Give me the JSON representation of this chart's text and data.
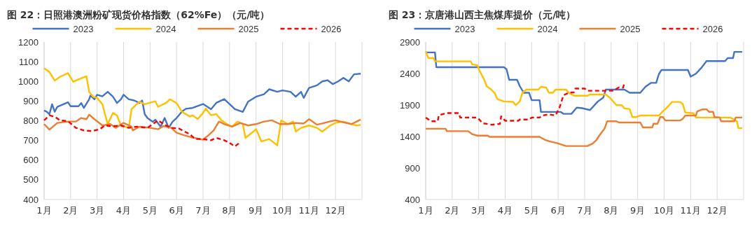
{
  "chart_data": [
    {
      "type": "line",
      "title": "图 22：日照港澳洲粉矿现货价格指数（62%Fe）（元/吨）",
      "legend": "top",
      "grid": "x",
      "xlim": [
        1,
        13
      ],
      "xticks": [
        {
          "value": 1,
          "label": "1月"
        },
        {
          "value": 2,
          "label": "2月"
        },
        {
          "value": 3,
          "label": "3月"
        },
        {
          "value": 4,
          "label": "4月"
        },
        {
          "value": 5,
          "label": "5月"
        },
        {
          "value": 6,
          "label": "6月"
        },
        {
          "value": 7,
          "label": "7月"
        },
        {
          "value": 8,
          "label": "8月"
        },
        {
          "value": 9,
          "label": "9月"
        },
        {
          "value": 10,
          "label": "10月"
        },
        {
          "value": 11,
          "label": "11月"
        },
        {
          "value": 12,
          "label": "12月"
        },
        {
          "value": 13,
          "label": null
        }
      ],
      "ylim": [
        400,
        1200
      ],
      "yticks": [
        400,
        500,
        600,
        700,
        800,
        900,
        1000,
        1100,
        1200
      ],
      "series": [
        {
          "name": "2023",
          "color": "#4472c4",
          "line_style": "solid",
          "x": [
            1.0,
            1.1,
            1.2,
            1.3,
            1.4,
            1.5,
            1.9,
            2.0,
            2.3,
            2.4,
            2.5,
            2.7,
            2.75,
            2.9,
            3.0,
            3.2,
            3.4,
            3.6,
            3.75,
            3.9,
            4.0,
            4.2,
            4.4,
            4.6,
            4.7,
            4.8,
            4.9,
            5.1,
            5.2,
            5.4,
            5.55,
            5.7,
            5.85,
            6.0,
            6.2,
            6.35,
            6.6,
            7.0,
            7.3,
            7.5,
            7.8,
            8.0,
            8.2,
            8.5,
            8.7,
            9.0,
            9.3,
            9.5,
            9.8,
            10.0,
            10.3,
            10.5,
            10.7,
            10.8,
            11.0,
            11.3,
            11.5,
            11.7,
            11.9,
            12.1,
            12.3,
            12.5,
            12.7,
            12.95
          ],
          "values": [
            852,
            846,
            833,
            884,
            846,
            871,
            894,
            874,
            874,
            890,
            865,
            909,
            928,
            909,
            932,
            924,
            947,
            922,
            890,
            909,
            932,
            909,
            903,
            890,
            903,
            833,
            814,
            795,
            805,
            770,
            814,
            764,
            795,
            814,
            846,
            861,
            865,
            885,
            859,
            891,
            910,
            885,
            859,
            845,
            897,
            922,
            935,
            960,
            947,
            954,
            947,
            922,
            947,
            916,
            967,
            980,
            1000,
            1006,
            986,
            1000,
            1018,
            1000,
            1036,
            1039
          ]
        },
        {
          "name": "2024",
          "color": "#ffc000",
          "line_style": "solid",
          "x": [
            1.0,
            1.2,
            1.4,
            1.6,
            1.9,
            2.1,
            2.3,
            2.6,
            2.7,
            2.85,
            3.0,
            3.2,
            3.4,
            3.6,
            3.75,
            3.9,
            4.2,
            4.3,
            4.6,
            4.8,
            5.2,
            5.3,
            5.6,
            5.75,
            6.0,
            6.2,
            6.5,
            6.6,
            6.8,
            7.0,
            7.1,
            7.3,
            7.5,
            7.7,
            7.9,
            8.1,
            8.3,
            8.5,
            8.6,
            8.9,
            9.0,
            9.2,
            9.5,
            9.8,
            9.95,
            10.2,
            10.4,
            10.5,
            10.7,
            11.0,
            11.3,
            11.5,
            11.8,
            12.0,
            12.3,
            12.6,
            12.8,
            12.95
          ],
          "values": [
            1067,
            1048,
            1004,
            1023,
            1042,
            998,
            1010,
            1026,
            947,
            922,
            916,
            884,
            783,
            840,
            827,
            776,
            764,
            859,
            897,
            884,
            899,
            871,
            890,
            909,
            890,
            846,
            821,
            828,
            809,
            840,
            862,
            828,
            834,
            802,
            783,
            770,
            796,
            783,
            713,
            745,
            758,
            695,
            707,
            675,
            802,
            783,
            796,
            745,
            764,
            776,
            764,
            745,
            776,
            789,
            796,
            783,
            776,
            779
          ]
        },
        {
          "name": "2025",
          "color": "#ed7d31",
          "line_style": "solid",
          "x": [
            1.0,
            1.2,
            1.5,
            1.9,
            2.2,
            2.4,
            2.6,
            2.7,
            2.9,
            3.2,
            3.5,
            3.7,
            4.0,
            4.3,
            4.35,
            4.6,
            5.0,
            5.3,
            5.5,
            5.8,
            6.0,
            6.3,
            6.6,
            7.0,
            7.2,
            7.4,
            7.6,
            7.8,
            8.1,
            8.4,
            8.7,
            9.0,
            9.3,
            9.6,
            9.9,
            10.2,
            10.5,
            10.8,
            11.0,
            11.3,
            11.5,
            11.8,
            12.0,
            12.3,
            12.6,
            12.8,
            12.95
          ],
          "values": [
            783,
            755,
            789,
            796,
            796,
            814,
            808,
            831,
            808,
            776,
            783,
            764,
            789,
            770,
            751,
            770,
            764,
            757,
            773,
            764,
            739,
            726,
            715,
            704,
            726,
            751,
            796,
            783,
            770,
            789,
            776,
            783,
            796,
            802,
            783,
            783,
            789,
            786,
            808,
            780,
            786,
            797,
            802,
            792,
            783,
            796,
            806
          ]
        },
        {
          "name": "2026",
          "color": "#ff0000",
          "line_style": "dashed",
          "x": [
            1.0,
            1.2,
            1.4,
            1.6,
            1.9,
            2.2,
            2.5,
            2.8,
            3.1,
            3.3,
            3.6,
            3.9,
            4.2,
            4.5,
            4.9,
            5.1,
            5.3,
            5.6,
            5.8,
            6.1,
            6.3,
            6.5,
            6.7,
            7.0,
            7.3,
            7.5,
            7.8,
            8.0,
            8.2,
            8.4
          ],
          "values": [
            802,
            827,
            821,
            802,
            798,
            764,
            751,
            747,
            757,
            776,
            772,
            776,
            764,
            770,
            764,
            783,
            802,
            776,
            764,
            760,
            745,
            732,
            707,
            707,
            701,
            713,
            701,
            688,
            669,
            691
          ]
        }
      ]
    },
    {
      "type": "line",
      "title": "图 23：京唐港山西主焦煤库提价（元/吨）",
      "legend": "top",
      "grid": "x",
      "xlim": [
        1,
        13
      ],
      "xticks": [
        {
          "value": 1,
          "label": "1月"
        },
        {
          "value": 2,
          "label": "2月"
        },
        {
          "value": 3,
          "label": "3月"
        },
        {
          "value": 4,
          "label": "4月"
        },
        {
          "value": 5,
          "label": "5月"
        },
        {
          "value": 6,
          "label": "6月"
        },
        {
          "value": 7,
          "label": "7月"
        },
        {
          "value": 8,
          "label": "8月"
        },
        {
          "value": 9,
          "label": "9月"
        },
        {
          "value": 10,
          "label": "10月"
        },
        {
          "value": 11,
          "label": "11月"
        },
        {
          "value": 12,
          "label": "12月"
        },
        {
          "value": 13,
          "label": null
        }
      ],
      "ylim": [
        400,
        2900
      ],
      "yticks": [
        400,
        900,
        1400,
        1900,
        2400,
        2900
      ],
      "series": [
        {
          "name": "2023",
          "color": "#4472c4",
          "line_style": "solid",
          "x": [
            1.0,
            1.35,
            1.4,
            3.95,
            4.05,
            4.15,
            4.45,
            4.55,
            4.7,
            4.9,
            5.0,
            5.3,
            5.35,
            6.1,
            6.2,
            6.5,
            6.7,
            6.9,
            7.2,
            7.5,
            7.7,
            7.8,
            8.5,
            8.7,
            9.1,
            9.3,
            9.5,
            9.7,
            9.8,
            9.9,
            10.9,
            11.0,
            11.2,
            11.4,
            11.6,
            12.3,
            12.4,
            12.6,
            12.65,
            12.95
          ],
          "values": [
            2735,
            2735,
            2500,
            2500,
            2470,
            2300,
            2300,
            2200,
            2095,
            2095,
            1976,
            1976,
            1790,
            1790,
            1760,
            1760,
            1858,
            1850,
            1819,
            1957,
            2016,
            2145,
            2145,
            2094,
            2094,
            2192,
            2251,
            2251,
            2389,
            2456,
            2456,
            2350,
            2397,
            2487,
            2597,
            2597,
            2644,
            2644,
            2743,
            2743
          ]
        },
        {
          "name": "2024",
          "color": "#ffc000",
          "line_style": "solid",
          "x": [
            1.0,
            1.1,
            1.3,
            1.35,
            2.7,
            2.75,
            2.95,
            3.05,
            3.2,
            3.3,
            3.45,
            3.6,
            3.7,
            3.95,
            4.3,
            4.4,
            4.55,
            4.65,
            4.8,
            5.25,
            5.35,
            5.55,
            5.65,
            5.8,
            5.9,
            6.3,
            6.4,
            6.6,
            7.1,
            7.2,
            7.8,
            7.95,
            8.2,
            8.4,
            8.5,
            8.7,
            8.8,
            8.95,
            9.1,
            9.8,
            9.95,
            10.1,
            10.3,
            10.6,
            10.7,
            10.8,
            11.1,
            11.2,
            12.5,
            12.75,
            12.8,
            12.95
          ],
          "values": [
            2751,
            2644,
            2644,
            2593,
            2593,
            2546,
            2530,
            2428,
            2310,
            2200,
            2153,
            2094,
            1996,
            1957,
            1950,
            1898,
            1957,
            2094,
            2145,
            2145,
            2192,
            2175,
            2094,
            2094,
            2145,
            2145,
            2094,
            2047,
            2047,
            2067,
            2067,
            2016,
            1898,
            1898,
            1847,
            1835,
            1709,
            1709,
            1733,
            1733,
            1799,
            1858,
            1949,
            1949,
            1917,
            1780,
            1770,
            1701,
            1701,
            1642,
            1532,
            1532
          ]
        },
        {
          "name": "2025",
          "color": "#ed7d31",
          "line_style": "solid",
          "x": [
            1.0,
            1.75,
            1.8,
            2.6,
            2.75,
            2.95,
            3.35,
            3.4,
            5.3,
            5.5,
            5.7,
            5.95,
            6.3,
            7.1,
            7.3,
            7.45,
            7.55,
            7.75,
            7.85,
            8.2,
            8.3,
            9.1,
            9.2,
            9.55,
            9.6,
            9.75,
            9.85,
            9.95,
            10.05,
            10.6,
            10.7,
            10.8,
            11.2,
            11.25,
            11.45,
            11.6,
            11.7,
            11.85,
            11.9,
            12.1,
            12.15,
            12.65,
            12.7,
            12.95
          ],
          "values": [
            1524,
            1524,
            1485,
            1485,
            1438,
            1414,
            1414,
            1395,
            1395,
            1347,
            1320,
            1296,
            1249,
            1249,
            1288,
            1347,
            1414,
            1524,
            1642,
            1642,
            1622,
            1622,
            1544,
            1544,
            1603,
            1603,
            1709,
            1709,
            1654,
            1654,
            1681,
            1733,
            1733,
            1799,
            1831,
            1831,
            1791,
            1791,
            1709,
            1701,
            1642,
            1642,
            1701,
            1701
          ]
        },
        {
          "name": "2026",
          "color": "#ff0000",
          "line_style": "dashed",
          "x": [
            1.0,
            1.2,
            1.45,
            1.5,
            1.8,
            2.25,
            2.3,
            2.95,
            3.15,
            3.5,
            3.8,
            3.85,
            4.0,
            4.5,
            4.55,
            4.9,
            5.0,
            5.3,
            5.4,
            5.65,
            5.9,
            6.05,
            6.2,
            6.4,
            6.6,
            6.65,
            7.0,
            7.1,
            8.05,
            8.15,
            8.3,
            8.45,
            8.5
          ],
          "values": [
            1701,
            1642,
            1642,
            1740,
            1772,
            1772,
            1701,
            1701,
            1611,
            1587,
            1600,
            1721,
            1650,
            1650,
            1670,
            1670,
            1701,
            1701,
            1733,
            1752,
            1733,
            1858,
            2055,
            2094,
            2102,
            2161,
            2161,
            2126,
            2126,
            2145,
            2181,
            2175,
            2251
          ]
        }
      ]
    }
  ]
}
